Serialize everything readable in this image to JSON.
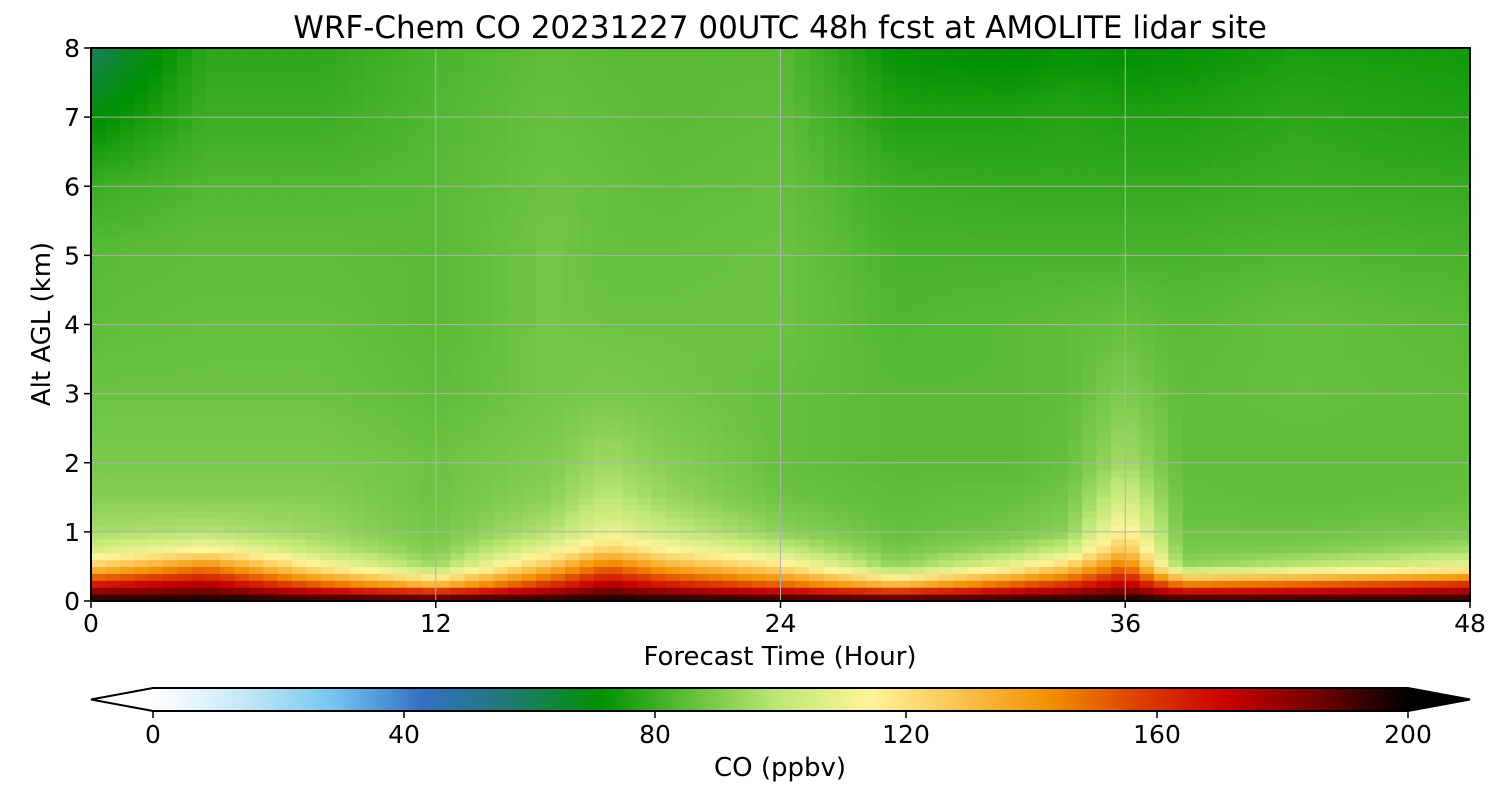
{
  "chart_data": {
    "type": "heatmap",
    "title": "WRF-Chem CO  20231227 00UTC 48h fcst at AMOLITE lidar site",
    "xlabel": "Forecast Time (Hour)",
    "ylabel": "Alt AGL (km)",
    "xlim": [
      0,
      48
    ],
    "ylim": [
      0,
      8
    ],
    "xticks": [
      "0",
      "12",
      "24",
      "36",
      "48"
    ],
    "yticks": [
      "0",
      "1",
      "2",
      "3",
      "4",
      "5",
      "6",
      "7",
      "8"
    ],
    "grid": true,
    "colorbar": {
      "label": "CO  (ppbv)",
      "range": [
        0,
        200
      ],
      "ticks": [
        "0",
        "40",
        "80",
        "120",
        "160",
        "200"
      ],
      "extend": "both",
      "colors": [
        "#ffffff",
        "#c6e8f8",
        "#74c7ef",
        "#3470c4",
        "#1f7a70",
        "#009100",
        "#64c03c",
        "#c0e878",
        "#fff59a",
        "#fbc250",
        "#f29000",
        "#dd3f00",
        "#c80000",
        "#700000",
        "#000000"
      ]
    },
    "values_unit": "ppbv",
    "x": [
      0,
      4,
      8,
      12,
      16,
      18,
      20,
      24,
      28,
      32,
      34,
      36,
      38,
      42,
      48
    ],
    "y": [
      0,
      0.25,
      0.5,
      0.75,
      1,
      1.5,
      2,
      3,
      4,
      5,
      6,
      7,
      8
    ],
    "z": [
      [
        200,
        200,
        200,
        200,
        200,
        200,
        200,
        200,
        200,
        200,
        200,
        200,
        200,
        200,
        200
      ],
      [
        165,
        175,
        150,
        130,
        160,
        175,
        165,
        150,
        130,
        150,
        160,
        175,
        145,
        150,
        160
      ],
      [
        125,
        145,
        115,
        95,
        130,
        150,
        135,
        120,
        93,
        110,
        125,
        150,
        93,
        100,
        110
      ],
      [
        105,
        115,
        100,
        90,
        110,
        125,
        115,
        102,
        88,
        95,
        103,
        130,
        89,
        90,
        96
      ],
      [
        96,
        98,
        94,
        88,
        98,
        110,
        102,
        92,
        86,
        88,
        92,
        118,
        87,
        87,
        89
      ],
      [
        91,
        91,
        91,
        87,
        92,
        100,
        94,
        87,
        85,
        86,
        88,
        105,
        86,
        85,
        86
      ],
      [
        89,
        89,
        89,
        87,
        90,
        95,
        91,
        86,
        84,
        84,
        86,
        96,
        85,
        85,
        85
      ],
      [
        87,
        87,
        87,
        85,
        88,
        89,
        88,
        86,
        84,
        84,
        85,
        90,
        85,
        86,
        85
      ],
      [
        85,
        86,
        86,
        84,
        88,
        87,
        87,
        87,
        83,
        84,
        85,
        86,
        84,
        86,
        84
      ],
      [
        84,
        85,
        85,
        84,
        88,
        86,
        86,
        87,
        82,
        82,
        82,
        82,
        82,
        83,
        82
      ],
      [
        80,
        83,
        83,
        84,
        87,
        86,
        85,
        86,
        80,
        79,
        79,
        79,
        79,
        80,
        79
      ],
      [
        70,
        80,
        80,
        83,
        86,
        85,
        84,
        85,
        76,
        76,
        77,
        76,
        76,
        78,
        76
      ],
      [
        60,
        78,
        78,
        82,
        85,
        84,
        84,
        84,
        72,
        70,
        72,
        71,
        72,
        75,
        74
      ]
    ]
  }
}
